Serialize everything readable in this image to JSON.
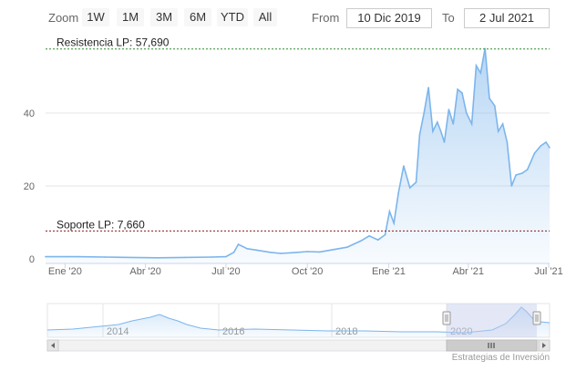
{
  "zoom": {
    "label": "Zoom",
    "buttons": [
      "1W",
      "1M",
      "3M",
      "6M",
      "YTD",
      "All"
    ]
  },
  "range": {
    "from_label": "From",
    "from_value": "10 Dic 2019",
    "to_label": "To",
    "to_value": "2 Jul 2021"
  },
  "credit": "Estrategias de Inversión",
  "colors": {
    "line": "#7cb5ec",
    "resistance": "#2e8b2e",
    "support": "#8b1a1a",
    "navigator_mask": "#c4cdeb"
  },
  "chart_data": {
    "type": "area",
    "title": "",
    "xlabel": "",
    "ylabel": "",
    "ylim": [
      0,
      57.69
    ],
    "yticks": [
      0,
      20,
      40
    ],
    "xticks": [
      "Ene '20",
      "Abr '20",
      "Jul '20",
      "Oct '20",
      "Ene '21",
      "Abr '21",
      "Jul '21"
    ],
    "grid": true,
    "legend": "none",
    "series": [
      {
        "x": [
          "2019-12-10",
          "2020-01-15",
          "2020-02-15",
          "2020-03-15",
          "2020-04-15",
          "2020-05-15",
          "2020-06-15",
          "2020-07-01",
          "2020-07-10",
          "2020-07-15",
          "2020-07-25",
          "2020-08-05",
          "2020-08-20",
          "2020-09-01",
          "2020-09-15",
          "2020-10-01",
          "2020-10-15",
          "2020-11-01",
          "2020-11-15",
          "2020-12-01",
          "2020-12-10",
          "2020-12-20",
          "2020-12-28",
          "2021-01-02",
          "2021-01-07",
          "2021-01-12",
          "2021-01-18",
          "2021-01-25",
          "2021-02-01",
          "2021-02-05",
          "2021-02-10",
          "2021-02-15",
          "2021-02-20",
          "2021-02-25",
          "2021-03-01",
          "2021-03-05",
          "2021-03-10",
          "2021-03-15",
          "2021-03-20",
          "2021-03-25",
          "2021-03-30",
          "2021-04-05",
          "2021-04-10",
          "2021-04-15",
          "2021-04-20",
          "2021-04-25",
          "2021-05-01",
          "2021-05-05",
          "2021-05-10",
          "2021-05-15",
          "2021-05-20",
          "2021-05-25",
          "2021-06-01",
          "2021-06-07",
          "2021-06-15",
          "2021-06-22",
          "2021-06-28",
          "2021-07-02"
        ],
        "values": [
          0.6,
          0.6,
          0.5,
          0.4,
          0.3,
          0.4,
          0.5,
          0.6,
          1.8,
          4.0,
          2.8,
          2.4,
          1.8,
          1.5,
          1.7,
          2.0,
          1.9,
          2.6,
          3.2,
          5.0,
          6.3,
          5.2,
          6.6,
          13.0,
          9.8,
          18.0,
          25.5,
          19.5,
          21.0,
          34.0,
          40.0,
          47.0,
          35.0,
          37.5,
          35.0,
          32.0,
          41.0,
          37.0,
          46.5,
          45.5,
          40.0,
          37.0,
          53.0,
          51.0,
          57.7,
          44.0,
          42.0,
          35.0,
          37.0,
          32.0,
          20.0,
          23.0,
          23.5,
          24.5,
          29.0,
          31.0,
          32.0,
          30.5
        ]
      }
    ],
    "annotations": [
      {
        "label": "Resistencia LP: 57,690",
        "value": 57.69
      },
      {
        "label": "Soporte LP: 7,660",
        "value": 7.66
      }
    ],
    "navigator": {
      "xticks": [
        "2014",
        "2016",
        "2018",
        "2020"
      ],
      "selected_range": [
        "2019-12-10",
        "2021-07-02"
      ]
    }
  }
}
